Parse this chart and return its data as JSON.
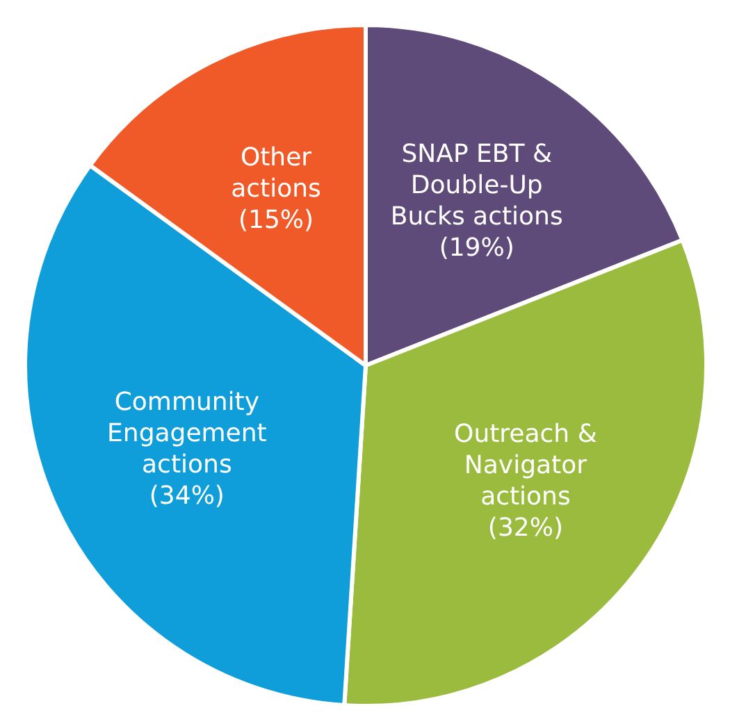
{
  "chart_data": {
    "type": "pie",
    "categories": [
      "SNAP EBT & Double-Up Bucks actions",
      "Outreach & Navigator actions",
      "Community Engagement actions",
      "Other actions"
    ],
    "values": [
      19,
      32,
      34,
      15
    ],
    "value_labels": [
      "(19%)",
      "(32%)",
      "(34%)",
      "(15%)"
    ],
    "colors": [
      "#5f4b7a",
      "#9bbb3e",
      "#0f9ed9",
      "#f05a28"
    ]
  }
}
